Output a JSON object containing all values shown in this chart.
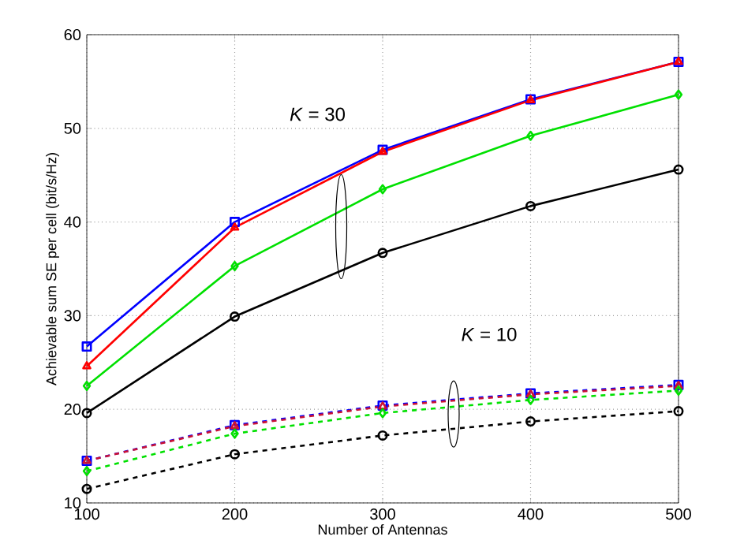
{
  "chart_data": {
    "type": "line",
    "xlabel": "Number of Antennas",
    "ylabel": "Achievable sum SE per cell (bit/s/Hz)",
    "x": [
      100,
      200,
      300,
      400,
      500
    ],
    "series": [
      {
        "color": "#0000ff",
        "marker": "square",
        "line_style": "solid",
        "values": [
          26.7,
          40.0,
          47.7,
          53.1,
          57.1
        ]
      },
      {
        "color": "#ff0000",
        "marker": "triangle",
        "line_style": "solid",
        "values": [
          24.6,
          39.4,
          47.5,
          53.0,
          57.1
        ]
      },
      {
        "color": "#00e000",
        "marker": "diamond",
        "line_style": "solid",
        "values": [
          22.5,
          35.3,
          43.5,
          49.2,
          53.6
        ]
      },
      {
        "color": "#000000",
        "marker": "circle",
        "line_style": "solid",
        "values": [
          19.6,
          29.9,
          36.7,
          41.7,
          45.6
        ]
      },
      {
        "color": "#0000ff",
        "marker": "square",
        "line_style": "dashed",
        "values": [
          14.5,
          18.3,
          20.4,
          21.7,
          22.6
        ]
      },
      {
        "color": "#cc1133",
        "marker": "triangle",
        "line_style": "dashed",
        "values": [
          14.5,
          18.2,
          20.3,
          21.6,
          22.5
        ]
      },
      {
        "color": "#00e000",
        "marker": "diamond",
        "line_style": "dashed",
        "values": [
          13.4,
          17.4,
          19.6,
          21.0,
          22.0
        ]
      },
      {
        "color": "#000000",
        "marker": "circle",
        "line_style": "dashed",
        "values": [
          11.5,
          15.2,
          17.2,
          18.7,
          19.8
        ]
      }
    ],
    "annotations": [
      "*K* = 30",
      "*K* = 10"
    ],
    "xlim": [
      100,
      500
    ],
    "ylim": [
      10,
      60
    ],
    "xticks": [
      100,
      200,
      300,
      400,
      500
    ],
    "yticks": [
      10,
      20,
      30,
      40,
      50,
      60
    ],
    "grid": true
  }
}
